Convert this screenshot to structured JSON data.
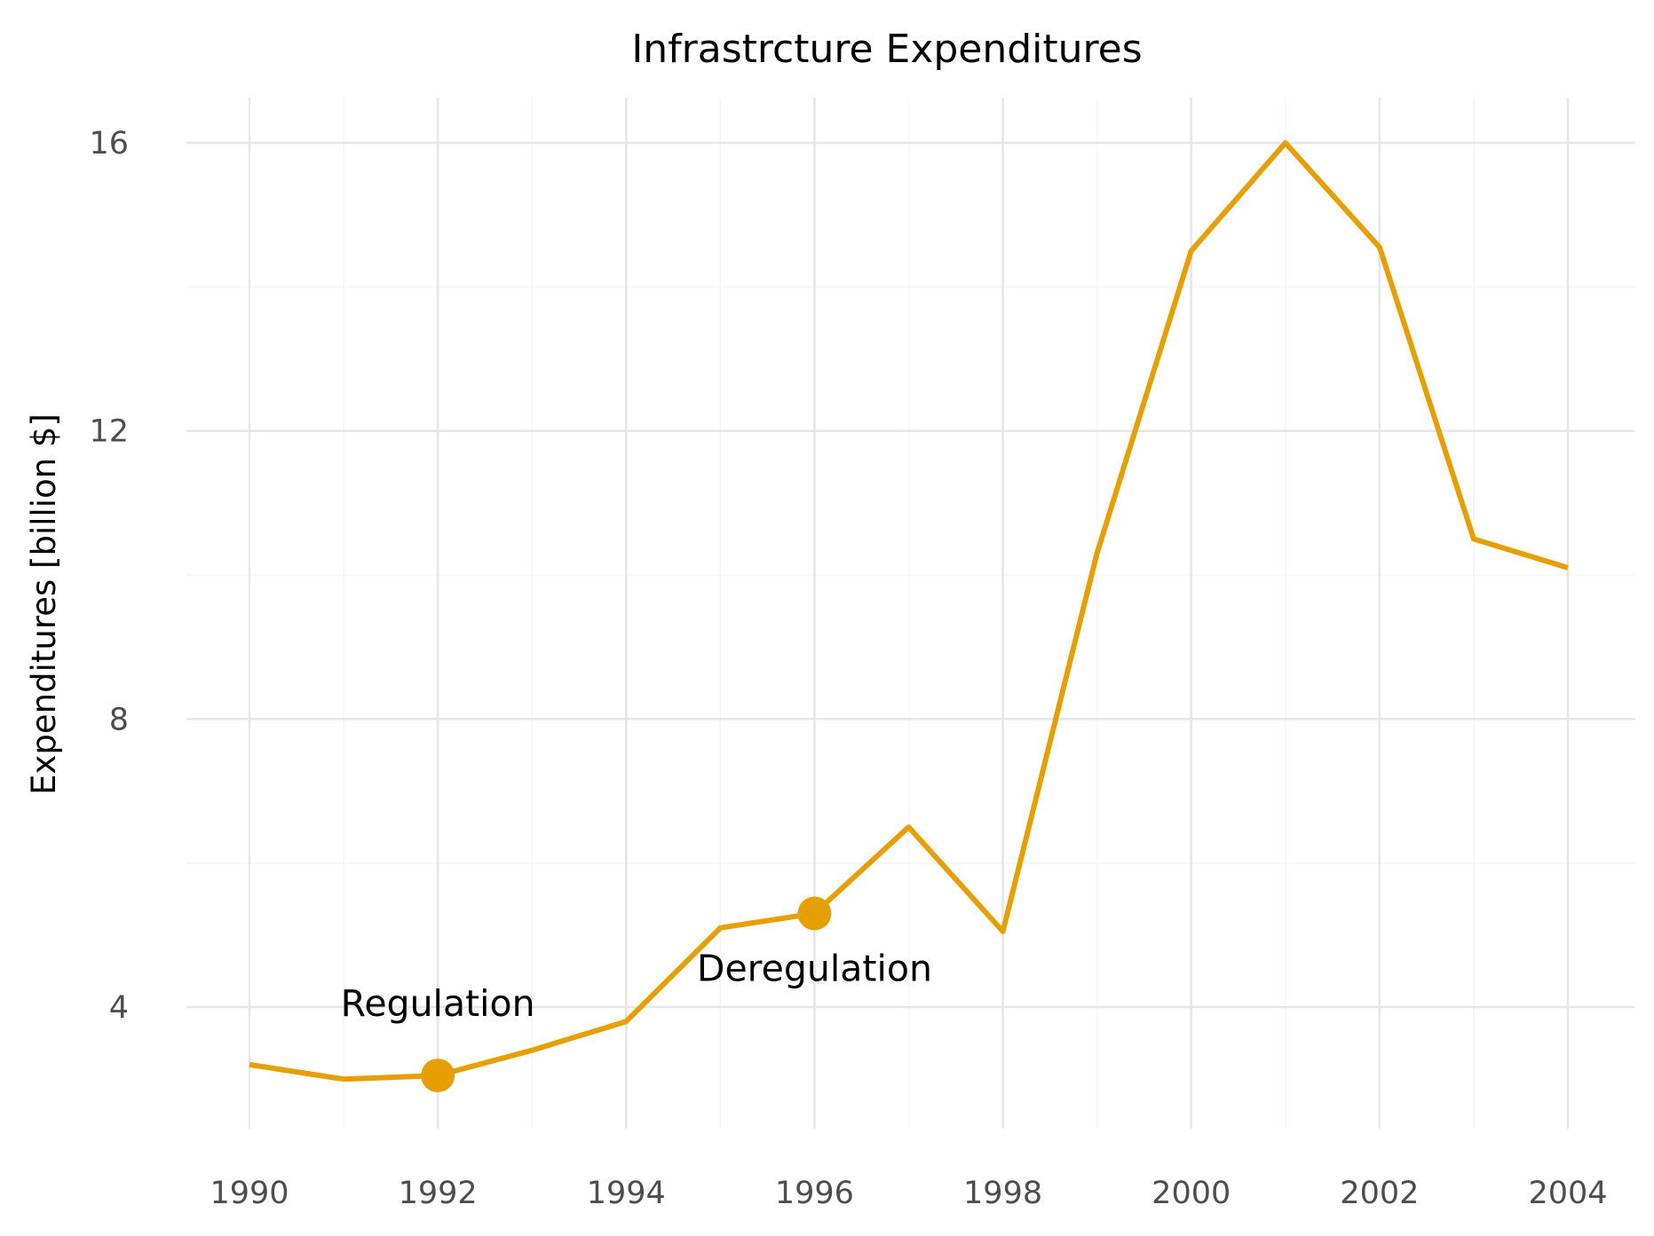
{
  "chart_data": {
    "type": "line",
    "title": "Infrastrcture Expenditures",
    "xlabel": "",
    "ylabel": "Expenditures [billion $]",
    "x": [
      1990,
      1991,
      1992,
      1993,
      1994,
      1995,
      1996,
      1997,
      1998,
      1999,
      2000,
      2001,
      2002,
      2003,
      2004
    ],
    "series": [
      {
        "values": [
          3.2,
          3.0,
          3.05,
          3.4,
          3.8,
          5.1,
          5.3,
          6.5,
          5.05,
          10.3,
          14.5,
          16.0,
          14.55,
          10.5,
          10.1
        ],
        "color": "#E69F00"
      }
    ],
    "xlim": [
      1989.65,
      2004.35
    ],
    "ylim": [
      2.5,
      16.65
    ],
    "x_ticks": [
      1990,
      1992,
      1994,
      1996,
      1998,
      2000,
      2002,
      2004
    ],
    "y_ticks": [
      4,
      8,
      12,
      16
    ],
    "grid": true,
    "highlighted_points": [
      {
        "x": 1992,
        "y": 3.05
      },
      {
        "x": 1996,
        "y": 5.3
      }
    ],
    "annotations": [
      {
        "text": "Regulation",
        "x": 1992,
        "y": 3.05,
        "position": "above"
      },
      {
        "text": "Deregulation",
        "x": 1996,
        "y": 5.3,
        "position": "below"
      }
    ]
  }
}
